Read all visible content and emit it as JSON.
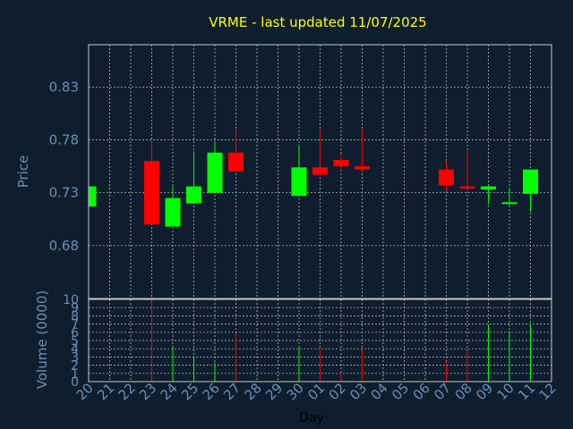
{
  "chart_data": {
    "type": "candlestick",
    "title": "VRME - last updated 11/07/2025",
    "price_panel": {
      "ylabel": "Price",
      "ylim": [
        0.63,
        0.87
      ],
      "y_ticks": [
        "0.83",
        "0.78",
        "0.73",
        "0.68"
      ],
      "y_tick_values": [
        0.83,
        0.78,
        0.73,
        0.68
      ]
    },
    "volume_panel": {
      "ylabel": "Volume (0000)",
      "ylim": [
        0,
        10
      ],
      "y_ticks": [
        "10",
        "9",
        "8",
        "7",
        "6",
        "5",
        "4",
        "3",
        "2",
        "1",
        "0"
      ],
      "y_tick_values": [
        10,
        9,
        8,
        7,
        6,
        5,
        4,
        3,
        2,
        1,
        0
      ]
    },
    "xlabel": "Day",
    "x_ticks": [
      "20",
      "21",
      "22",
      "23",
      "24",
      "25",
      "26",
      "27",
      "28",
      "29",
      "30",
      "01",
      "02",
      "03",
      "04",
      "05",
      "06",
      "07",
      "08",
      "09",
      "10",
      "11",
      "12"
    ],
    "candles": [
      {
        "day": "20",
        "open": 0.717,
        "high": 0.737,
        "low": 0.715,
        "close": 0.736,
        "volume": 0
      },
      {
        "day": "23",
        "open": 0.76,
        "high": 0.778,
        "low": 0.7,
        "close": 0.7,
        "volume": 10
      },
      {
        "day": "24",
        "open": 0.698,
        "high": 0.736,
        "low": 0.698,
        "close": 0.725,
        "volume": 4.2
      },
      {
        "day": "25",
        "open": 0.72,
        "high": 0.769,
        "low": 0.72,
        "close": 0.736,
        "volume": 2.9
      },
      {
        "day": "26",
        "open": 0.73,
        "high": 0.777,
        "low": 0.73,
        "close": 0.768,
        "volume": 2.3
      },
      {
        "day": "27",
        "open": 0.768,
        "high": 0.79,
        "low": 0.75,
        "close": 0.75,
        "volume": 5.8
      },
      {
        "day": "30",
        "open": 0.727,
        "high": 0.775,
        "low": 0.727,
        "close": 0.754,
        "volume": 4.1
      },
      {
        "day": "01",
        "open": 0.754,
        "high": 0.79,
        "low": 0.747,
        "close": 0.747,
        "volume": 3.9
      },
      {
        "day": "02",
        "open": 0.761,
        "high": 0.767,
        "low": 0.753,
        "close": 0.755,
        "volume": 1.1
      },
      {
        "day": "03",
        "open": 0.755,
        "high": 0.79,
        "low": 0.751,
        "close": 0.752,
        "volume": 3.8
      },
      {
        "day": "07",
        "open": 0.752,
        "high": 0.76,
        "low": 0.731,
        "close": 0.737,
        "volume": 2.4
      },
      {
        "day": "08",
        "open": 0.736,
        "high": 0.77,
        "low": 0.734,
        "close": 0.734,
        "volume": 3.6
      },
      {
        "day": "09",
        "open": 0.733,
        "high": 0.737,
        "low": 0.719,
        "close": 0.736,
        "volume": 7
      },
      {
        "day": "10",
        "open": 0.72,
        "high": 0.735,
        "low": 0.718,
        "close": 0.721,
        "volume": 5.9
      },
      {
        "day": "11",
        "open": 0.729,
        "high": 0.752,
        "low": 0.712,
        "close": 0.752,
        "volume": 7
      }
    ],
    "colors": {
      "background": "#0f1e2e",
      "axis": "#c8c8c8",
      "grid": "#c8c8c8",
      "label": "#6c8fb4",
      "title": "#ffff00",
      "up": "#00ff00",
      "down": "#ff0000"
    },
    "grid": true
  }
}
